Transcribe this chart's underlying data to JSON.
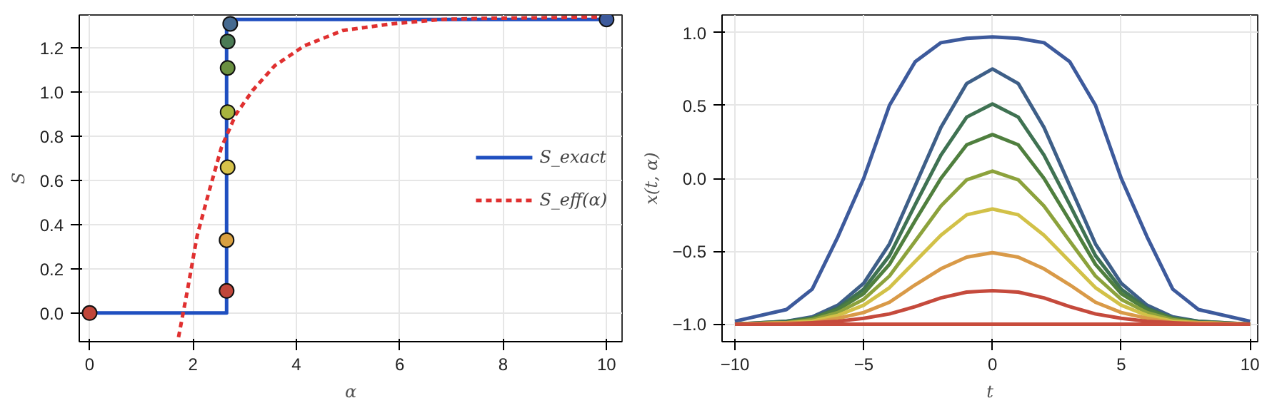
{
  "chart_data": [
    {
      "type": "line",
      "xlabel": "α",
      "ylabel": "S",
      "xlim": [
        -0.2,
        10.3
      ],
      "ylim": [
        -0.13,
        1.35
      ],
      "xticks": [
        0,
        2,
        4,
        6,
        8,
        10
      ],
      "yticks": [
        {
          "value": 0,
          "label": "0.0"
        },
        {
          "value": 0.2,
          "label": "0.2"
        },
        {
          "value": 0.4,
          "label": "0.4"
        },
        {
          "value": 0.6,
          "label": "0.6"
        },
        {
          "value": 0.8,
          "label": "0.8"
        },
        {
          "value": 1,
          "label": "1.0"
        },
        {
          "value": 1.2,
          "label": "1.2"
        }
      ],
      "grid": true,
      "legend": "right",
      "series": [
        {
          "name": "S_exact",
          "type": "line",
          "color": "#1f4fc0",
          "line_style": "solid",
          "x": [
            0,
            2.65,
            2.65,
            2.72,
            10
          ],
          "values": [
            0,
            0,
            1.31,
            1.33,
            1.33
          ]
        },
        {
          "name": "S_eff(α)",
          "type": "line",
          "color": "#e03030",
          "line_style": "dashed",
          "x": [
            1.72,
            1.89,
            2.08,
            2.31,
            2.55,
            2.83,
            3.16,
            3.58,
            4.15,
            4.9,
            5.85,
            6.8,
            7.7,
            9.9
          ],
          "values": [
            -0.11,
            0.1,
            0.35,
            0.55,
            0.75,
            0.9,
            1.01,
            1.12,
            1.21,
            1.28,
            1.31,
            1.33,
            1.335,
            1.34
          ]
        },
        {
          "type": "scatter",
          "marker": "circle",
          "x": [
            0,
            2.65,
            2.65,
            2.67,
            2.67,
            2.67,
            2.67,
            2.72,
            10
          ],
          "values": [
            0,
            0.1,
            0.33,
            0.66,
            0.91,
            1.11,
            1.23,
            1.31,
            1.33
          ],
          "colors": [
            "#c0463a",
            "#c0463a",
            "#d9a040",
            "#d6c24a",
            "#a8b43e",
            "#6a9040",
            "#4b7a55",
            "#466a90",
            "#3d5a9c"
          ]
        }
      ]
    },
    {
      "type": "line",
      "xlabel": "t",
      "ylabel": "x(t, α)",
      "xlim": [
        -10.5,
        10.3
      ],
      "ylim": [
        -1.12,
        1.12
      ],
      "xticks": [
        {
          "value": -10,
          "label": "−10"
        },
        {
          "value": -5,
          "label": "−5"
        },
        0,
        5,
        10
      ],
      "yticks": [
        {
          "value": -1,
          "label": "−1.0"
        },
        {
          "value": -0.5,
          "label": "−0.5"
        },
        {
          "value": 0,
          "label": "0.0"
        },
        {
          "value": 0.5,
          "label": "0.5"
        },
        {
          "value": 1,
          "label": "1.0"
        }
      ],
      "grid": true,
      "x": [
        -10,
        -8,
        -7,
        -6,
        -5,
        -4,
        -3,
        -2,
        -1,
        0,
        1,
        2,
        3,
        4,
        5,
        6,
        7,
        8,
        10
      ],
      "series": [
        {
          "color": "#3d5a9c",
          "values": [
            -0.98,
            -0.9,
            -0.76,
            -0.4,
            0.0,
            0.5,
            0.8,
            0.93,
            0.96,
            0.97,
            0.96,
            0.93,
            0.8,
            0.5,
            0.0,
            -0.4,
            -0.76,
            -0.9,
            -0.98
          ]
        },
        {
          "color": "#3e5f88",
          "values": [
            -1.0,
            -0.98,
            -0.95,
            -0.87,
            -0.72,
            -0.45,
            -0.05,
            0.35,
            0.65,
            0.75,
            0.65,
            0.35,
            -0.05,
            -0.45,
            -0.72,
            -0.87,
            -0.95,
            -0.98,
            -1.0
          ]
        },
        {
          "color": "#3f7252",
          "values": [
            -1.0,
            -0.98,
            -0.96,
            -0.89,
            -0.76,
            -0.53,
            -0.18,
            0.16,
            0.42,
            0.51,
            0.42,
            0.16,
            -0.18,
            -0.53,
            -0.76,
            -0.89,
            -0.96,
            -0.98,
            -1.0
          ]
        },
        {
          "color": "#4f7f3e",
          "values": [
            -1.0,
            -0.99,
            -0.96,
            -0.9,
            -0.79,
            -0.59,
            -0.29,
            0.0,
            0.23,
            0.3,
            0.23,
            0.0,
            -0.29,
            -0.59,
            -0.79,
            -0.9,
            -0.96,
            -0.99,
            -1.0
          ]
        },
        {
          "color": "#8ca23c",
          "values": [
            -1.0,
            -0.99,
            -0.97,
            -0.92,
            -0.83,
            -0.67,
            -0.43,
            -0.19,
            -0.01,
            0.05,
            -0.01,
            -0.19,
            -0.43,
            -0.67,
            -0.83,
            -0.92,
            -0.97,
            -0.99,
            -1.0
          ]
        },
        {
          "color": "#d2c148",
          "values": [
            -1.0,
            -0.99,
            -0.98,
            -0.94,
            -0.87,
            -0.75,
            -0.57,
            -0.39,
            -0.25,
            -0.21,
            -0.25,
            -0.39,
            -0.57,
            -0.75,
            -0.87,
            -0.94,
            -0.98,
            -0.99,
            -1.0
          ]
        },
        {
          "color": "#d99a48",
          "values": [
            -1.0,
            -0.99,
            -0.99,
            -0.96,
            -0.92,
            -0.85,
            -0.73,
            -0.62,
            -0.54,
            -0.51,
            -0.54,
            -0.62,
            -0.73,
            -0.85,
            -0.92,
            -0.96,
            -0.99,
            -0.99,
            -1.0
          ]
        },
        {
          "color": "#c54a3c",
          "values": [
            -1.0,
            -1.0,
            -0.99,
            -0.98,
            -0.96,
            -0.93,
            -0.88,
            -0.82,
            -0.78,
            -0.77,
            -0.78,
            -0.82,
            -0.88,
            -0.93,
            -0.96,
            -0.98,
            -0.99,
            -1.0,
            -1.0
          ]
        },
        {
          "color": "#c84c3c",
          "values": [
            -1.0,
            -1.0,
            -1.0,
            -1.0,
            -1.0,
            -1.0,
            -1.0,
            -1.0,
            -1.0,
            -1.0,
            -1.0,
            -1.0,
            -1.0,
            -1.0,
            -1.0,
            -1.0,
            -1.0,
            -1.0,
            -1.0
          ]
        }
      ]
    }
  ]
}
